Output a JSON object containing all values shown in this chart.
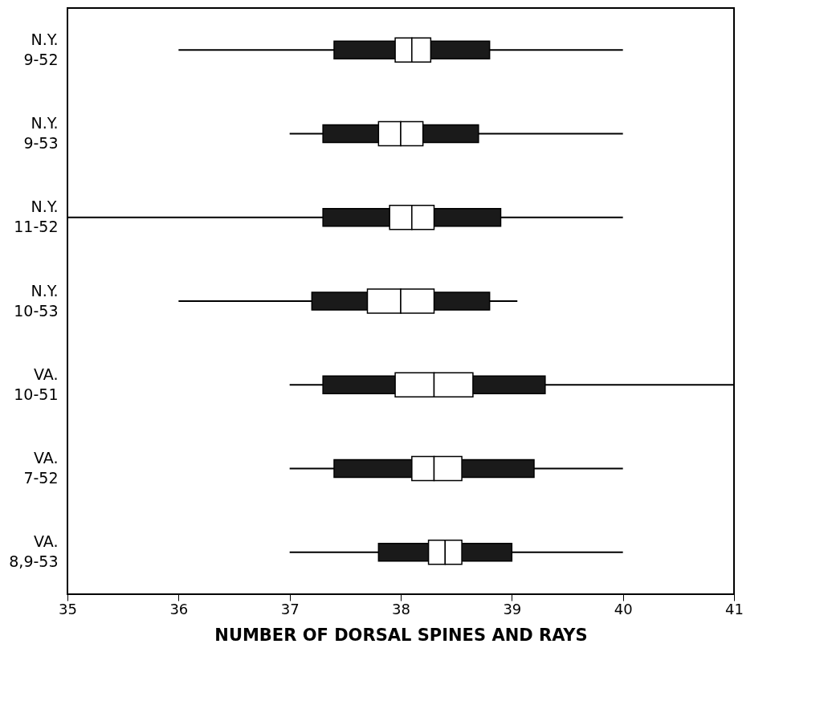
{
  "chart_data": {
    "type": "bar",
    "orientation": "horizontal",
    "xlabel": "NUMBER OF DORSAL SPINES AND RAYS",
    "categories": [
      "N.Y. 9-52",
      "N.Y. 9-53",
      "N.Y. 11-52",
      "N.Y. 10-53",
      "VA. 10-51",
      "VA. 7-52",
      "VA. 8,9-53"
    ],
    "xlim": [
      35,
      41
    ],
    "xticks": [
      35,
      36,
      37,
      38,
      39,
      40,
      41
    ],
    "grid": false,
    "series": [
      {
        "type": "bar",
        "color": "#000000",
        "base": [
          36,
          37,
          35,
          36,
          37,
          37,
          37
        ],
        "values": [
          4,
          3,
          5,
          3.05,
          4,
          3,
          3
        ]
      },
      {
        "type": "bar",
        "color": "#1a1a1a",
        "base": [
          37.4,
          37.3,
          37.3,
          37.2,
          37.3,
          37.4,
          37.8
        ],
        "values": [
          1.4,
          1.4,
          1.6,
          1.6,
          2.0,
          1.8,
          1.2
        ]
      },
      {
        "type": "bar",
        "color": "#ffffff",
        "base": [
          37.95,
          37.8,
          37.9,
          37.7,
          37.95,
          38.1,
          38.25
        ],
        "values": [
          0.15,
          0.2,
          0.2,
          0.3,
          0.35,
          0.2,
          0.15
        ]
      },
      {
        "type": "bar",
        "color": "#ffffff",
        "base": [
          38.1,
          38.0,
          38.1,
          38.0,
          38.3,
          38.3,
          38.4
        ],
        "values": [
          0.17,
          0.2,
          0.2,
          0.3,
          0.35,
          0.25,
          0.15
        ]
      }
    ]
  }
}
